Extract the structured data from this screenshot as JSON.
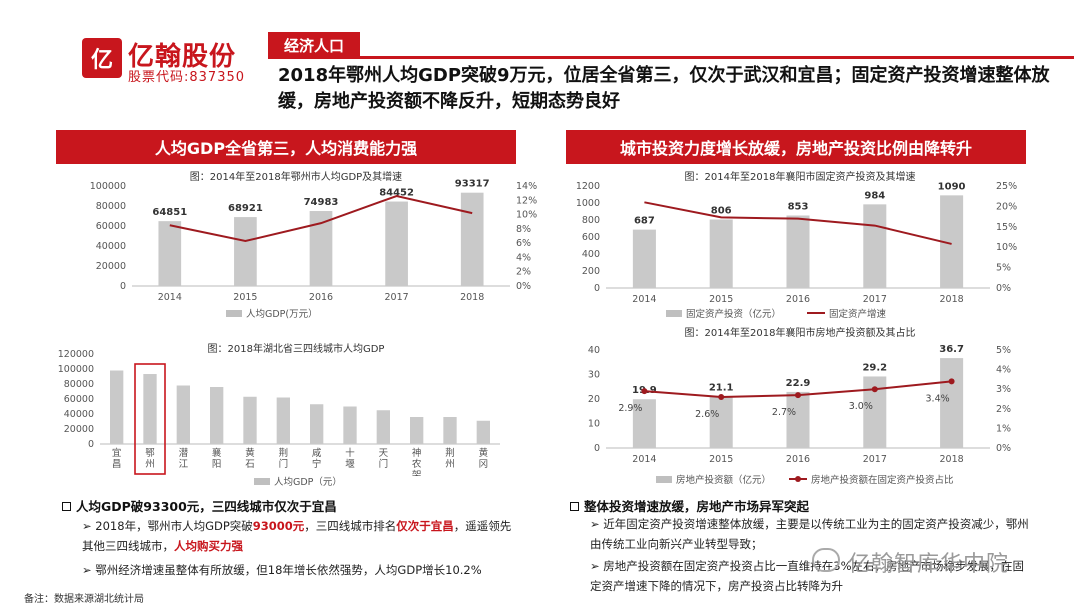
{
  "brand": {
    "mark": "亿",
    "name": "亿翰股份",
    "stock_code": "股票代码:837350"
  },
  "header": {
    "section": "经济人口",
    "title": "2018年鄂州人均GDP突破9万元，位居全省第三，仅次于武汉和宜昌；固定资产投资增速整体放缓，房地产投资额不降反升，短期态势良好"
  },
  "left_panel": {
    "heading": "人均GDP全省第三，人均消费能力强",
    "chart1": {
      "title": "图：2014年至2018年鄂州市人均GDP及其增速",
      "legend_bar": "人均GDP(万元）",
      "y_ticks": [
        "100000",
        "80000",
        "60000",
        "40000",
        "20000",
        "0"
      ],
      "y2_ticks": [
        "14%",
        "12%",
        "10%",
        "8%",
        "6%",
        "4%",
        "2%",
        "0%"
      ],
      "bar_labels": [
        "64851",
        "68921",
        "74983",
        "84452",
        "93317"
      ]
    },
    "chart2": {
      "title": "图：2018年湖北省三四线城市人均GDP",
      "legend_bar": "人均GDP（元）",
      "y_ticks": [
        "120000",
        "100000",
        "80000",
        "60000",
        "40000",
        "20000",
        "0"
      ],
      "city_labels": [
        "宜昌",
        "鄂州",
        "潜江",
        "襄阳",
        "黄石",
        "荆门",
        "咸宁",
        "十堰",
        "天门",
        "神农架",
        "荆州",
        "黄冈"
      ]
    },
    "bullet_head": "人均GDP破93300元，三四线城市仅次于宜昌",
    "bullet1": {
      "a": "2018年，鄂州市人均GDP突破",
      "b": "93000元",
      "c": "，三四线城市排名",
      "d": "仅次于宜昌",
      "e": "，遥遥领先其他三四线城市，",
      "f": "人均购买力强"
    },
    "bullet2": "鄂州经济增速虽整体有所放缓，但18年增长依然强势，人均GDP增长10.2%"
  },
  "right_panel": {
    "heading": "城市投资力度增长放缓，房地产投资比例由降转升",
    "chart1": {
      "title": "图：2014年至2018年襄阳市固定资产投资及其增速",
      "legend_bar": "固定资产投资（亿元）",
      "legend_line": "固定资产增速",
      "y_ticks": [
        "1200",
        "1000",
        "800",
        "600",
        "400",
        "200",
        "0"
      ],
      "y2_ticks": [
        "25%",
        "20%",
        "15%",
        "10%",
        "5%",
        "0%"
      ],
      "bar_labels": [
        "687",
        "806",
        "853",
        "984",
        "1090"
      ]
    },
    "chart2": {
      "title": "图：2014年至2018年襄阳市房地产投资额及其占比",
      "legend_bar": "房地产投资额（亿元）",
      "legend_line": "房地产投资额在固定资产投资占比",
      "y_ticks": [
        "40",
        "30",
        "20",
        "10",
        "0"
      ],
      "y2_ticks": [
        "5%",
        "4%",
        "3%",
        "2%",
        "1%",
        "0%"
      ],
      "bar_labels": [
        "19.9",
        "21.1",
        "22.9",
        "29.2",
        "36.7"
      ],
      "pct_labels": [
        "2.9%",
        "2.6%",
        "2.7%",
        "3.0%",
        "3.4%"
      ]
    },
    "bullet_head": "整体投资增速放缓，房地产市场异军突起",
    "bullet1": "近年固定资产投资增速整体放缓，主要是以传统工业为主的固定资产投资减少，鄂州由传统工业向新兴产业转型导致；",
    "bullet2": "房地产投资额在固定资产投资占比一直维持在3%左右，房地产市场稳步发展，在固定资产增速下降的情况下，房产投资占比转降为升"
  },
  "footnote": "备注：数据来源湖北统计局",
  "watermark": "亿翰智库华中院",
  "chart_data": [
    {
      "type": "bar",
      "title": "图：2014年至2018年鄂州市人均GDP及其增速",
      "categories": [
        "2014",
        "2015",
        "2016",
        "2017",
        "2018"
      ],
      "series": [
        {
          "name": "人均GDP(万元）",
          "values": [
            64851,
            68921,
            74983,
            84452,
            93317
          ]
        },
        {
          "name": "增速",
          "type": "line",
          "axis": "right",
          "values": [
            8.5,
            6.3,
            8.8,
            12.6,
            10.2
          ]
        }
      ],
      "ylim": [
        0,
        100000
      ],
      "y2lim": [
        0,
        14
      ]
    },
    {
      "type": "bar",
      "title": "图：2018年湖北省三四线城市人均GDP",
      "categories": [
        "宜昌",
        "鄂州",
        "潜江",
        "襄阳",
        "黄石",
        "荆门",
        "咸宁",
        "十堰",
        "天门",
        "神农架",
        "荆州",
        "黄冈"
      ],
      "series": [
        {
          "name": "人均GDP（元）",
          "values": [
            98000,
            93317,
            78000,
            76000,
            63000,
            62000,
            53000,
            50000,
            45000,
            36000,
            36000,
            31000
          ]
        }
      ],
      "ylim": [
        0,
        120000
      ]
    },
    {
      "type": "bar",
      "title": "图：2014年至2018年襄阳市固定资产投资及其增速",
      "categories": [
        "2014",
        "2015",
        "2016",
        "2017",
        "2018"
      ],
      "series": [
        {
          "name": "固定资产投资（亿元）",
          "values": [
            687,
            806,
            853,
            984,
            1090
          ]
        },
        {
          "name": "固定资产增速",
          "type": "line",
          "axis": "right",
          "values": [
            21,
            17.3,
            17,
            15.3,
            10.8
          ]
        }
      ],
      "ylim": [
        0,
        1200
      ],
      "y2lim": [
        0,
        25
      ]
    },
    {
      "type": "bar",
      "title": "图：2014年至2018年襄阳市房地产投资额及其占比",
      "categories": [
        "2014",
        "2015",
        "2016",
        "2017",
        "2018"
      ],
      "series": [
        {
          "name": "房地产投资额（亿元）",
          "values": [
            19.9,
            21.1,
            22.9,
            29.2,
            36.7
          ]
        },
        {
          "name": "房地产投资额在固定资产投资占比",
          "type": "line",
          "axis": "right",
          "values": [
            2.9,
            2.6,
            2.7,
            3.0,
            3.4
          ]
        }
      ],
      "ylim": [
        0,
        40
      ],
      "y2lim": [
        0,
        5
      ]
    }
  ]
}
